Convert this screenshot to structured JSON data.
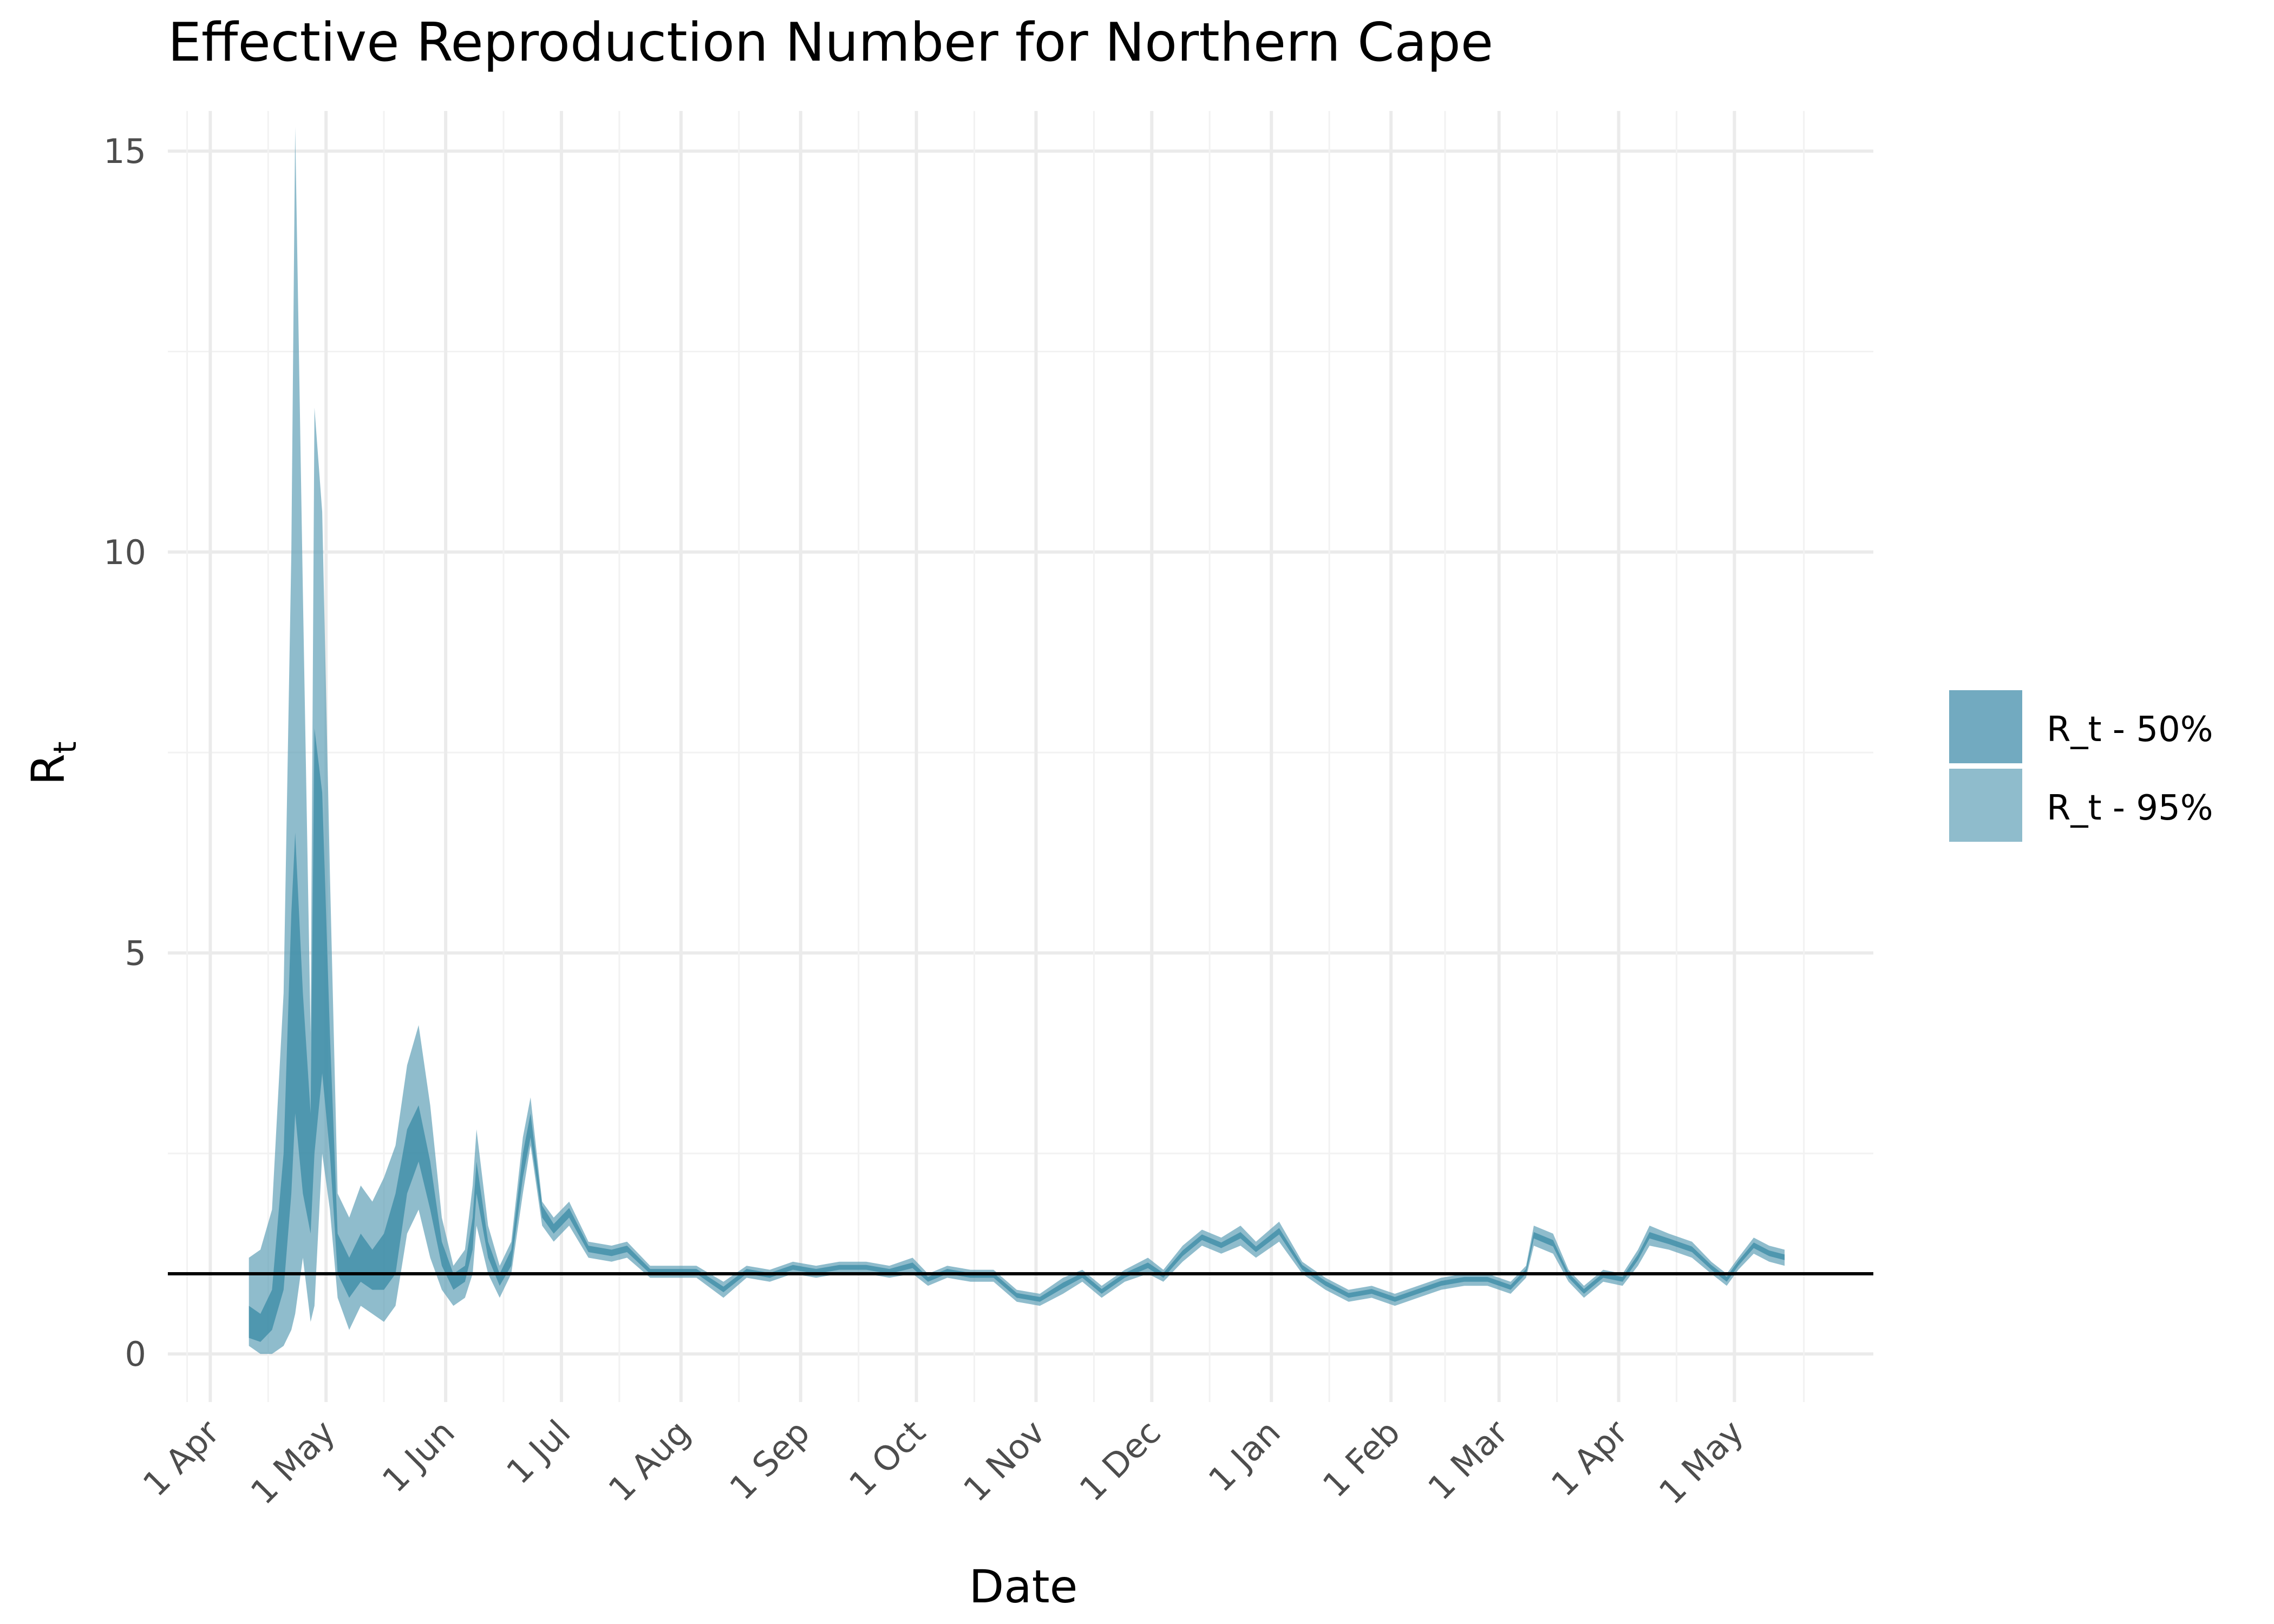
{
  "title": "Effective Reproduction Number for Northern Cape",
  "chart_data": {
    "type": "area",
    "title": "Effective Reproduction Number for Northern Cape",
    "xlabel": "Date",
    "ylabel": "R",
    "ylabel_subscript": "t",
    "x_range": [
      "2020-03-21",
      "2021-06-06"
    ],
    "ylim": [
      -0.6,
      15.5
    ],
    "y_ticks": [
      0,
      5,
      10,
      15
    ],
    "x_ticks": [
      {
        "date": "2020-04-01",
        "label": "1 Apr"
      },
      {
        "date": "2020-05-01",
        "label": "1 May"
      },
      {
        "date": "2020-06-01",
        "label": "1 Jun"
      },
      {
        "date": "2020-07-01",
        "label": "1 Jul"
      },
      {
        "date": "2020-08-01",
        "label": "1 Aug"
      },
      {
        "date": "2020-09-01",
        "label": "1 Sep"
      },
      {
        "date": "2020-10-01",
        "label": "1 Oct"
      },
      {
        "date": "2020-11-01",
        "label": "1 Nov"
      },
      {
        "date": "2020-12-01",
        "label": "1 Dec"
      },
      {
        "date": "2021-01-01",
        "label": "1 Jan"
      },
      {
        "date": "2021-02-01",
        "label": "1 Feb"
      },
      {
        "date": "2021-03-01",
        "label": "1 Mar"
      },
      {
        "date": "2021-04-01",
        "label": "1 Apr"
      },
      {
        "date": "2021-05-01",
        "label": "1 May"
      }
    ],
    "reference_line": 1,
    "grid": true,
    "legend_position": "right",
    "colors": {
      "band_50": "#3a8ba6",
      "band_95": "#5fa0b6",
      "reference": "#000000"
    },
    "series": [
      {
        "name": "R_t - 95%",
        "opacity": 0.7,
        "points": [
          [
            "2020-04-11",
            0.1,
            1.2
          ],
          [
            "2020-04-14",
            0.0,
            1.3
          ],
          [
            "2020-04-17",
            0.0,
            1.8
          ],
          [
            "2020-04-20",
            0.1,
            4.5
          ],
          [
            "2020-04-22",
            0.3,
            10.0
          ],
          [
            "2020-04-23",
            0.5,
            15.3
          ],
          [
            "2020-04-25",
            1.2,
            9.5
          ],
          [
            "2020-04-27",
            0.4,
            4.0
          ],
          [
            "2020-04-28",
            0.6,
            11.8
          ],
          [
            "2020-04-30",
            2.5,
            10.5
          ],
          [
            "2020-05-02",
            1.8,
            6.0
          ],
          [
            "2020-05-04",
            0.7,
            2.0
          ],
          [
            "2020-05-07",
            0.3,
            1.7
          ],
          [
            "2020-05-10",
            0.6,
            2.1
          ],
          [
            "2020-05-13",
            0.5,
            1.9
          ],
          [
            "2020-05-16",
            0.4,
            2.2
          ],
          [
            "2020-05-19",
            0.6,
            2.6
          ],
          [
            "2020-05-22",
            1.5,
            3.6
          ],
          [
            "2020-05-25",
            1.8,
            4.1
          ],
          [
            "2020-05-28",
            1.2,
            3.1
          ],
          [
            "2020-05-31",
            0.8,
            1.7
          ],
          [
            "2020-06-03",
            0.6,
            1.1
          ],
          [
            "2020-06-06",
            0.7,
            1.3
          ],
          [
            "2020-06-08",
            1.0,
            2.1
          ],
          [
            "2020-06-09",
            1.6,
            2.8
          ],
          [
            "2020-06-12",
            1.0,
            1.6
          ],
          [
            "2020-06-15",
            0.7,
            1.1
          ],
          [
            "2020-06-18",
            1.0,
            1.4
          ],
          [
            "2020-06-21",
            2.0,
            2.7
          ],
          [
            "2020-06-23",
            2.6,
            3.2
          ],
          [
            "2020-06-26",
            1.6,
            1.9
          ],
          [
            "2020-06-29",
            1.4,
            1.7
          ],
          [
            "2020-07-03",
            1.6,
            1.9
          ],
          [
            "2020-07-08",
            1.2,
            1.4
          ],
          [
            "2020-07-14",
            1.15,
            1.35
          ],
          [
            "2020-07-18",
            1.2,
            1.4
          ],
          [
            "2020-07-24",
            0.95,
            1.1
          ],
          [
            "2020-07-30",
            0.95,
            1.1
          ],
          [
            "2020-08-05",
            0.95,
            1.1
          ],
          [
            "2020-08-12",
            0.7,
            0.9
          ],
          [
            "2020-08-18",
            0.95,
            1.1
          ],
          [
            "2020-08-24",
            0.9,
            1.05
          ],
          [
            "2020-08-30",
            1.0,
            1.15
          ],
          [
            "2020-09-05",
            0.95,
            1.1
          ],
          [
            "2020-09-11",
            1.0,
            1.15
          ],
          [
            "2020-09-18",
            1.0,
            1.15
          ],
          [
            "2020-09-24",
            0.95,
            1.1
          ],
          [
            "2020-09-30",
            1.0,
            1.2
          ],
          [
            "2020-10-04",
            0.85,
            1.0
          ],
          [
            "2020-10-09",
            0.95,
            1.1
          ],
          [
            "2020-10-15",
            0.9,
            1.05
          ],
          [
            "2020-10-21",
            0.9,
            1.05
          ],
          [
            "2020-10-27",
            0.65,
            0.8
          ],
          [
            "2020-11-02",
            0.6,
            0.75
          ],
          [
            "2020-11-08",
            0.75,
            0.95
          ],
          [
            "2020-11-13",
            0.9,
            1.05
          ],
          [
            "2020-11-18",
            0.7,
            0.85
          ],
          [
            "2020-11-24",
            0.9,
            1.05
          ],
          [
            "2020-11-30",
            1.0,
            1.2
          ],
          [
            "2020-12-04",
            0.9,
            1.05
          ],
          [
            "2020-12-09",
            1.15,
            1.35
          ],
          [
            "2020-12-14",
            1.35,
            1.55
          ],
          [
            "2020-12-19",
            1.25,
            1.45
          ],
          [
            "2020-12-24",
            1.35,
            1.6
          ],
          [
            "2020-12-28",
            1.2,
            1.4
          ],
          [
            "2021-01-03",
            1.4,
            1.65
          ],
          [
            "2021-01-09",
            1.0,
            1.15
          ],
          [
            "2021-01-15",
            0.8,
            0.95
          ],
          [
            "2021-01-21",
            0.65,
            0.8
          ],
          [
            "2021-01-27",
            0.7,
            0.85
          ],
          [
            "2021-02-02",
            0.6,
            0.75
          ],
          [
            "2021-02-08",
            0.7,
            0.85
          ],
          [
            "2021-02-14",
            0.8,
            0.95
          ],
          [
            "2021-02-20",
            0.85,
            1.0
          ],
          [
            "2021-02-26",
            0.85,
            1.0
          ],
          [
            "2021-03-04",
            0.75,
            0.9
          ],
          [
            "2021-03-08",
            0.95,
            1.1
          ],
          [
            "2021-03-10",
            1.35,
            1.6
          ],
          [
            "2021-03-15",
            1.25,
            1.5
          ],
          [
            "2021-03-19",
            0.9,
            1.05
          ],
          [
            "2021-03-23",
            0.7,
            0.85
          ],
          [
            "2021-03-28",
            0.9,
            1.05
          ],
          [
            "2021-04-02",
            0.85,
            1.0
          ],
          [
            "2021-04-06",
            1.1,
            1.3
          ],
          [
            "2021-04-09",
            1.35,
            1.6
          ],
          [
            "2021-04-14",
            1.3,
            1.5
          ],
          [
            "2021-04-20",
            1.2,
            1.4
          ],
          [
            "2021-04-25",
            1.0,
            1.15
          ],
          [
            "2021-04-29",
            0.85,
            1.0
          ],
          [
            "2021-05-02",
            1.05,
            1.2
          ],
          [
            "2021-05-06",
            1.25,
            1.45
          ],
          [
            "2021-05-10",
            1.15,
            1.35
          ],
          [
            "2021-05-14",
            1.1,
            1.3
          ]
        ]
      },
      {
        "name": "R_t - 50%",
        "opacity": 0.75,
        "points": [
          [
            "2020-04-11",
            0.2,
            0.6
          ],
          [
            "2020-04-14",
            0.15,
            0.5
          ],
          [
            "2020-04-17",
            0.3,
            0.8
          ],
          [
            "2020-04-20",
            0.8,
            2.5
          ],
          [
            "2020-04-22",
            2.0,
            5.5
          ],
          [
            "2020-04-23",
            3.0,
            6.5
          ],
          [
            "2020-04-25",
            2.0,
            4.5
          ],
          [
            "2020-04-27",
            1.5,
            3.0
          ],
          [
            "2020-04-28",
            2.5,
            7.8
          ],
          [
            "2020-04-30",
            3.5,
            7.0
          ],
          [
            "2020-05-02",
            2.5,
            4.0
          ],
          [
            "2020-05-04",
            1.0,
            1.5
          ],
          [
            "2020-05-07",
            0.7,
            1.2
          ],
          [
            "2020-05-10",
            0.9,
            1.5
          ],
          [
            "2020-05-13",
            0.8,
            1.3
          ],
          [
            "2020-05-16",
            0.8,
            1.5
          ],
          [
            "2020-05-19",
            1.0,
            2.0
          ],
          [
            "2020-05-22",
            2.0,
            2.8
          ],
          [
            "2020-05-25",
            2.4,
            3.1
          ],
          [
            "2020-05-28",
            1.8,
            2.4
          ],
          [
            "2020-05-31",
            1.1,
            1.4
          ],
          [
            "2020-06-03",
            0.8,
            1.0
          ],
          [
            "2020-06-06",
            0.9,
            1.1
          ],
          [
            "2020-06-08",
            1.3,
            1.7
          ],
          [
            "2020-06-09",
            2.0,
            2.4
          ],
          [
            "2020-06-12",
            1.2,
            1.4
          ],
          [
            "2020-06-15",
            0.85,
            1.0
          ],
          [
            "2020-06-18",
            1.1,
            1.3
          ],
          [
            "2020-06-21",
            2.2,
            2.5
          ],
          [
            "2020-06-23",
            2.7,
            3.0
          ],
          [
            "2020-06-26",
            1.7,
            1.85
          ],
          [
            "2020-06-29",
            1.5,
            1.62
          ],
          [
            "2020-07-03",
            1.7,
            1.82
          ],
          [
            "2020-07-08",
            1.27,
            1.35
          ],
          [
            "2020-07-14",
            1.22,
            1.3
          ],
          [
            "2020-07-18",
            1.27,
            1.35
          ],
          [
            "2020-07-24",
            1.0,
            1.06
          ],
          [
            "2020-07-30",
            1.0,
            1.06
          ],
          [
            "2020-08-05",
            1.0,
            1.06
          ],
          [
            "2020-08-12",
            0.77,
            0.84
          ],
          [
            "2020-08-18",
            1.0,
            1.06
          ],
          [
            "2020-08-24",
            0.95,
            1.01
          ],
          [
            "2020-08-30",
            1.05,
            1.11
          ],
          [
            "2020-09-05",
            1.0,
            1.06
          ],
          [
            "2020-09-11",
            1.05,
            1.11
          ],
          [
            "2020-09-18",
            1.05,
            1.11
          ],
          [
            "2020-09-24",
            1.0,
            1.06
          ],
          [
            "2020-09-30",
            1.07,
            1.14
          ],
          [
            "2020-10-04",
            0.9,
            0.96
          ],
          [
            "2020-10-09",
            1.0,
            1.06
          ],
          [
            "2020-10-15",
            0.95,
            1.01
          ],
          [
            "2020-10-21",
            0.95,
            1.01
          ],
          [
            "2020-10-27",
            0.7,
            0.76
          ],
          [
            "2020-11-02",
            0.65,
            0.71
          ],
          [
            "2020-11-08",
            0.82,
            0.89
          ],
          [
            "2020-11-13",
            0.95,
            1.01
          ],
          [
            "2020-11-18",
            0.75,
            0.81
          ],
          [
            "2020-11-24",
            0.95,
            1.01
          ],
          [
            "2020-11-30",
            1.07,
            1.14
          ],
          [
            "2020-12-04",
            0.95,
            1.01
          ],
          [
            "2020-12-09",
            1.22,
            1.29
          ],
          [
            "2020-12-14",
            1.42,
            1.49
          ],
          [
            "2020-12-19",
            1.32,
            1.39
          ],
          [
            "2020-12-24",
            1.44,
            1.52
          ],
          [
            "2020-12-28",
            1.27,
            1.34
          ],
          [
            "2021-01-03",
            1.49,
            1.57
          ],
          [
            "2021-01-09",
            1.05,
            1.11
          ],
          [
            "2021-01-15",
            0.85,
            0.91
          ],
          [
            "2021-01-21",
            0.7,
            0.76
          ],
          [
            "2021-01-27",
            0.75,
            0.81
          ],
          [
            "2021-02-02",
            0.65,
            0.71
          ],
          [
            "2021-02-08",
            0.75,
            0.81
          ],
          [
            "2021-02-14",
            0.85,
            0.91
          ],
          [
            "2021-02-20",
            0.9,
            0.96
          ],
          [
            "2021-02-26",
            0.9,
            0.96
          ],
          [
            "2021-03-04",
            0.8,
            0.86
          ],
          [
            "2021-03-08",
            1.0,
            1.06
          ],
          [
            "2021-03-10",
            1.44,
            1.52
          ],
          [
            "2021-03-15",
            1.34,
            1.42
          ],
          [
            "2021-03-19",
            0.95,
            1.01
          ],
          [
            "2021-03-23",
            0.75,
            0.81
          ],
          [
            "2021-03-28",
            0.95,
            1.01
          ],
          [
            "2021-04-02",
            0.9,
            0.96
          ],
          [
            "2021-04-06",
            1.17,
            1.24
          ],
          [
            "2021-04-09",
            1.44,
            1.52
          ],
          [
            "2021-04-14",
            1.37,
            1.44
          ],
          [
            "2021-04-20",
            1.27,
            1.34
          ],
          [
            "2021-04-25",
            1.05,
            1.11
          ],
          [
            "2021-04-29",
            0.9,
            0.96
          ],
          [
            "2021-05-02",
            1.1,
            1.16
          ],
          [
            "2021-05-06",
            1.32,
            1.39
          ],
          [
            "2021-05-10",
            1.22,
            1.29
          ],
          [
            "2021-05-14",
            1.17,
            1.24
          ]
        ]
      }
    ]
  },
  "legend": [
    {
      "label": "R_t - 50%",
      "color": "#72aac0"
    },
    {
      "label": "R_t - 95%",
      "color": "#8fbccc"
    }
  ]
}
